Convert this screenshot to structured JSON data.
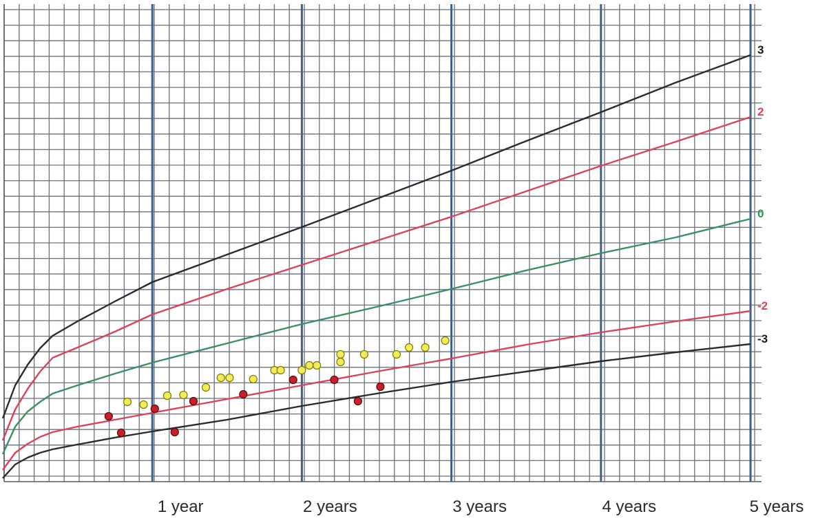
{
  "chart_data": {
    "type": "line",
    "x_tick_labels": [
      "1 year",
      "2 years",
      "3 years",
      "4 years",
      "5 years"
    ],
    "x_ticks": [
      12,
      24,
      36,
      48,
      60
    ],
    "xlim": [
      0,
      60
    ],
    "grid": true,
    "series": [
      {
        "name": "3",
        "color": "#2b2b2b",
        "label_color": "#1a1a1a",
        "x": [
          0,
          1,
          2,
          3,
          4,
          6,
          9,
          12,
          18,
          24,
          30,
          36,
          42,
          48,
          54,
          60
        ],
        "y": [
          608,
          560,
          530,
          506,
          488,
          467,
          438,
          410,
          370,
          330,
          289,
          248,
          205,
          163,
          120,
          80
        ]
      },
      {
        "name": "2",
        "color": "#d9445b",
        "label_color": "#d9445b",
        "x": [
          0,
          1,
          2,
          3,
          4,
          6,
          9,
          12,
          18,
          24,
          30,
          36,
          42,
          48,
          54,
          60
        ],
        "y": [
          640,
          595,
          565,
          540,
          520,
          505,
          482,
          457,
          420,
          385,
          350,
          315,
          278,
          241,
          206,
          170
        ]
      },
      {
        "name": "0",
        "color": "#3a8f63",
        "label_color": "#2e9a4e",
        "x": [
          0,
          1,
          2,
          3,
          4,
          6,
          9,
          12,
          18,
          24,
          30,
          36,
          42,
          48,
          54,
          60
        ],
        "y": [
          660,
          620,
          598,
          584,
          572,
          560,
          543,
          527,
          499,
          471,
          446,
          420,
          393,
          368,
          345,
          318
        ]
      },
      {
        "name": "-2",
        "color": "#d9445b",
        "label_color": "#d9445b",
        "x": [
          0,
          1,
          2,
          3,
          4,
          6,
          9,
          12,
          18,
          24,
          30,
          36,
          42,
          48,
          54,
          60
        ],
        "y": [
          683,
          658,
          645,
          635,
          628,
          620,
          610,
          600,
          580,
          560,
          540,
          521,
          501,
          483,
          467,
          452
        ]
      },
      {
        "name": "-3",
        "color": "#2b2b2b",
        "label_color": "#1a1a1a",
        "x": [
          0,
          1,
          2,
          3,
          4,
          6,
          9,
          12,
          18,
          24,
          30,
          36,
          42,
          48,
          54,
          60
        ],
        "y": [
          695,
          675,
          665,
          658,
          653,
          646,
          636,
          627,
          610,
          590,
          572,
          555,
          540,
          525,
          512,
          500
        ]
      }
    ],
    "points": [
      {
        "group": "yellow",
        "color": "#f3ec5a",
        "stroke": "#7a7a00",
        "data": [
          [
            10.0,
            584
          ],
          [
            11.3,
            588
          ],
          [
            13.2,
            575
          ],
          [
            14.5,
            574
          ],
          [
            16.3,
            563
          ],
          [
            17.5,
            549
          ],
          [
            18.2,
            549
          ],
          [
            20.1,
            551
          ],
          [
            21.8,
            538
          ],
          [
            22.3,
            538
          ],
          [
            24.0,
            538
          ],
          [
            24.6,
            531
          ],
          [
            25.2,
            531
          ],
          [
            27.1,
            515
          ],
          [
            27.1,
            526
          ],
          [
            29.0,
            515
          ],
          [
            31.6,
            515
          ],
          [
            32.6,
            505
          ],
          [
            33.9,
            505
          ],
          [
            35.5,
            495
          ]
        ]
      },
      {
        "group": "red",
        "color": "#c8202b",
        "stroke": "#5a0a0a",
        "data": [
          [
            8.5,
            605
          ],
          [
            9.5,
            629
          ],
          [
            12.2,
            594
          ],
          [
            13.8,
            628
          ],
          [
            15.3,
            583
          ],
          [
            19.3,
            573
          ],
          [
            23.3,
            552
          ],
          [
            26.6,
            552
          ],
          [
            28.5,
            583
          ],
          [
            30.3,
            562
          ]
        ]
      }
    ]
  }
}
